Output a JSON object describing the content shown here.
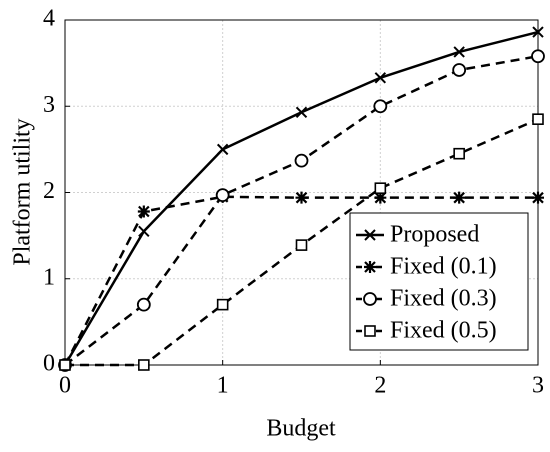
{
  "chart_data": {
    "type": "line",
    "x_label": "Budget",
    "y_label": "Platform utility",
    "x": [
      0,
      0.5,
      1,
      1.5,
      2,
      2.5,
      3
    ],
    "xlim": [
      0,
      3
    ],
    "xticks": [
      0,
      1,
      2,
      3
    ],
    "ylim": [
      0,
      4
    ],
    "yticks": [
      0,
      1,
      2,
      3,
      4
    ],
    "grid": true,
    "legend": "lower right",
    "series": [
      {
        "name": "Proposed",
        "color": "#000000",
        "marker": "x",
        "linestyle": "solid",
        "values": [
          0,
          1.55,
          2.5,
          2.93,
          3.33,
          3.63,
          3.86
        ]
      },
      {
        "name": "Fixed (0.1)",
        "color": "#000000",
        "marker": "asterisk",
        "linestyle": "dashed",
        "values": [
          0,
          1.78,
          1.95,
          1.94,
          1.94,
          1.94,
          1.94
        ]
      },
      {
        "name": "Fixed (0.3)",
        "color": "#000000",
        "marker": "circle",
        "linestyle": "dashed",
        "values": [
          0,
          0.7,
          1.97,
          2.37,
          3.0,
          3.42,
          3.58
        ]
      },
      {
        "name": "Fixed (0.5)",
        "color": "#000000",
        "marker": "square",
        "linestyle": "dashed",
        "values": [
          0,
          0,
          0.7,
          1.39,
          2.05,
          2.45,
          2.85
        ]
      }
    ]
  }
}
